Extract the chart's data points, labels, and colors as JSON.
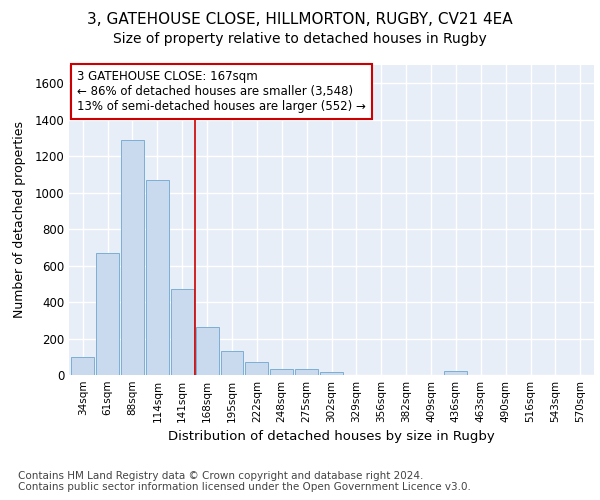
{
  "title1": "3, GATEHOUSE CLOSE, HILLMORTON, RUGBY, CV21 4EA",
  "title2": "Size of property relative to detached houses in Rugby",
  "xlabel": "Distribution of detached houses by size in Rugby",
  "ylabel": "Number of detached properties",
  "bar_color": "#c9d9ee",
  "bar_edge_color": "#7bafd4",
  "vline_color": "#cc0000",
  "annotation_text": "3 GATEHOUSE CLOSE: 167sqm\n← 86% of detached houses are smaller (3,548)\n13% of semi-detached houses are larger (552) →",
  "annotation_box_color": "white",
  "annotation_box_edge_color": "#cc0000",
  "footnote": "Contains HM Land Registry data © Crown copyright and database right 2024.\nContains public sector information licensed under the Open Government Licence v3.0.",
  "categories": [
    "34sqm",
    "61sqm",
    "88sqm",
    "114sqm",
    "141sqm",
    "168sqm",
    "195sqm",
    "222sqm",
    "248sqm",
    "275sqm",
    "302sqm",
    "329sqm",
    "356sqm",
    "382sqm",
    "409sqm",
    "436sqm",
    "463sqm",
    "490sqm",
    "516sqm",
    "543sqm",
    "570sqm"
  ],
  "values": [
    100,
    670,
    1290,
    1070,
    470,
    265,
    130,
    70,
    35,
    35,
    15,
    0,
    0,
    0,
    0,
    20,
    0,
    0,
    0,
    0,
    0
  ],
  "ylim": [
    0,
    1700
  ],
  "yticks": [
    0,
    200,
    400,
    600,
    800,
    1000,
    1200,
    1400,
    1600
  ],
  "background_color": "#e8eef8",
  "grid_color": "white",
  "title1_fontsize": 11,
  "title2_fontsize": 10,
  "footnote_fontsize": 7.5,
  "vline_xindex": 4.5
}
